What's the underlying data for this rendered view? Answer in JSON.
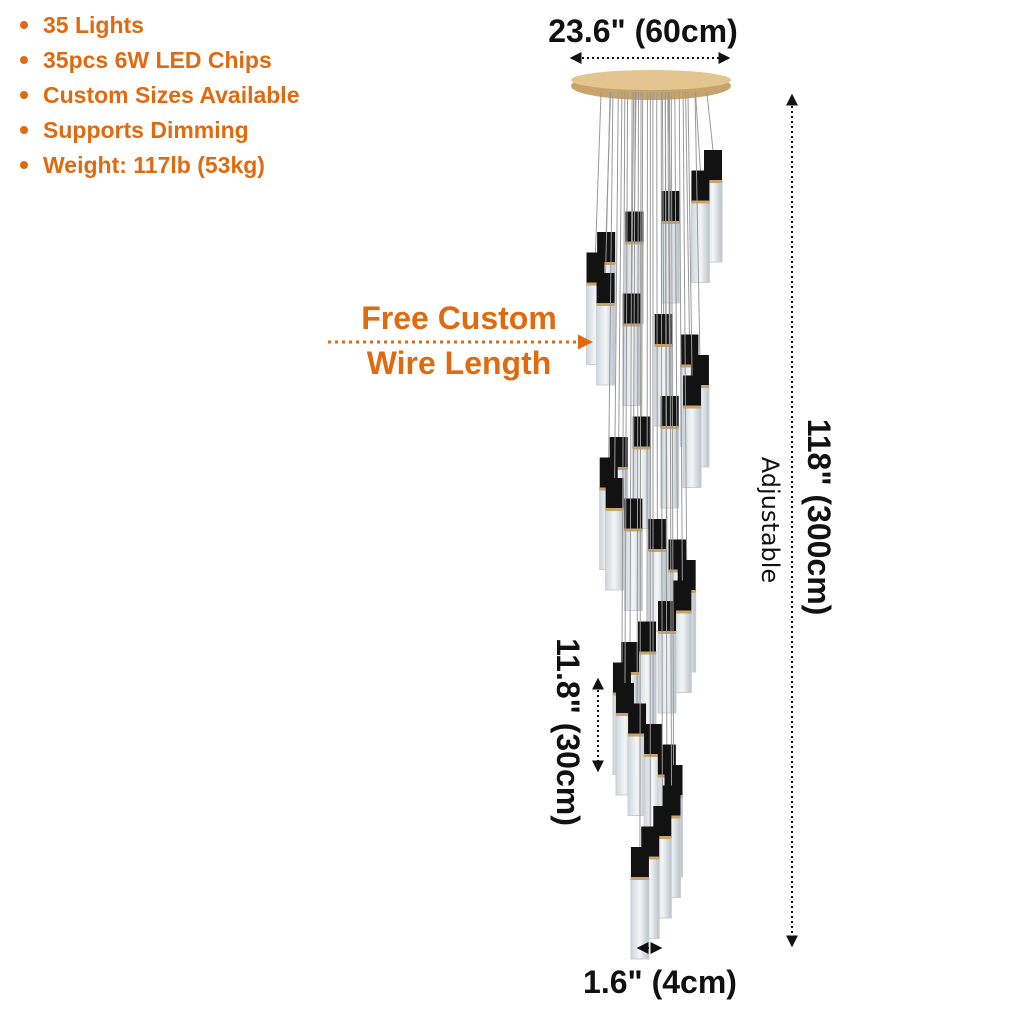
{
  "features": [
    "35 Lights",
    "35pcs 6W LED Chips",
    "Custom Sizes Available",
    "Supports Dimming",
    "Weight: 117lb (53kg)"
  ],
  "dimensions": {
    "width": "23.6\" (60cm)",
    "height": "118\" (300cm)",
    "height_note": "Adjustable",
    "pendant_length": "11.8\" (30cm)",
    "pendant_width": "1.6\" (4cm)"
  },
  "callout": {
    "line1": "Free Custom",
    "line2": "Wire Length"
  }
}
